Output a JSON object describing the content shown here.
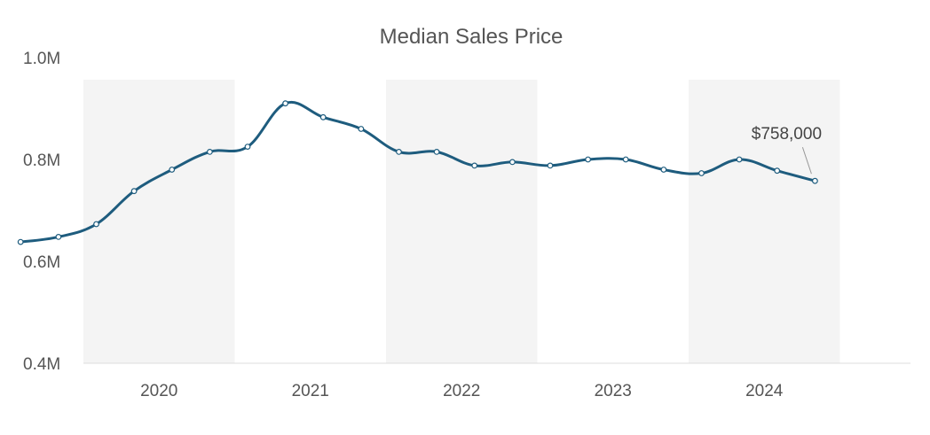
{
  "chart_data": {
    "type": "line",
    "title": "Median Sales Price",
    "xlabel": "",
    "ylabel": "",
    "ylim": [
      0.4,
      1.0
    ],
    "y_ticks": [
      {
        "value": 1.0,
        "label": "1.0M"
      },
      {
        "value": 0.8,
        "label": "0.8M"
      },
      {
        "value": 0.6,
        "label": "0.6M"
      },
      {
        "value": 0.4,
        "label": "0.4M"
      }
    ],
    "x_ticks": [
      "2020",
      "2021",
      "2022",
      "2023",
      "2024"
    ],
    "shaded_years": [
      "2020",
      "2022",
      "2024"
    ],
    "colors": {
      "line": "#1e5c7e",
      "band": "#f4f4f4",
      "axis": "#dddddd",
      "marker_fill": "#ffffff"
    },
    "series": [
      {
        "values": [
          {
            "x": "2019-08",
            "y": 0.638
          },
          {
            "x": "2019-11",
            "y": 0.648
          },
          {
            "x": "2020-02",
            "y": 0.673
          },
          {
            "x": "2020-05",
            "y": 0.738
          },
          {
            "x": "2020-08",
            "y": 0.78
          },
          {
            "x": "2020-11",
            "y": 0.815
          },
          {
            "x": "2021-02",
            "y": 0.825
          },
          {
            "x": "2021-05",
            "y": 0.91
          },
          {
            "x": "2021-08",
            "y": 0.883
          },
          {
            "x": "2021-11",
            "y": 0.86
          },
          {
            "x": "2022-02",
            "y": 0.815
          },
          {
            "x": "2022-05",
            "y": 0.815
          },
          {
            "x": "2022-08",
            "y": 0.788
          },
          {
            "x": "2022-11",
            "y": 0.795
          },
          {
            "x": "2023-02",
            "y": 0.788
          },
          {
            "x": "2023-05",
            "y": 0.8
          },
          {
            "x": "2023-08",
            "y": 0.8
          },
          {
            "x": "2023-11",
            "y": 0.78
          },
          {
            "x": "2024-02",
            "y": 0.773
          },
          {
            "x": "2024-05",
            "y": 0.8
          },
          {
            "x": "2024-08",
            "y": 0.778
          },
          {
            "x": "2024-11",
            "y": 0.758
          }
        ]
      }
    ],
    "annotation": {
      "x": "2024-11",
      "y": 0.758,
      "label": "$758,000"
    }
  }
}
